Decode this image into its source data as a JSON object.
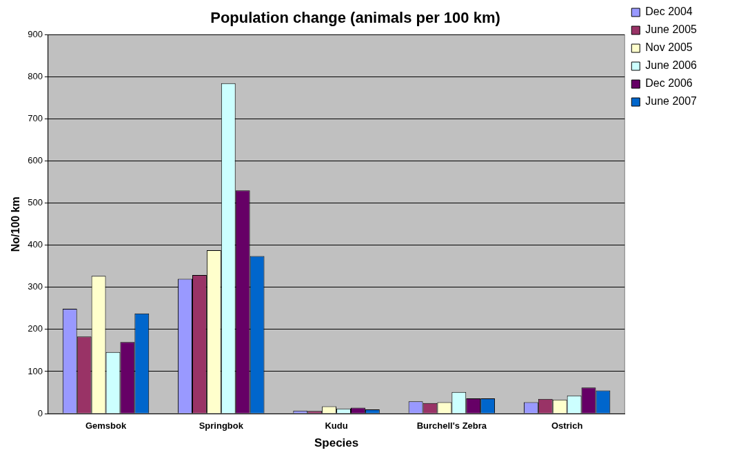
{
  "chart_data": {
    "type": "bar",
    "title": "Population change (animals per 100 km)",
    "xlabel": "Species",
    "ylabel": "No/100 km",
    "categories": [
      "Gemsbok",
      "Springbok",
      "Kudu",
      "Burchell's Zebra",
      "Ostrich"
    ],
    "series": [
      {
        "name": "Dec 2004",
        "color": "#9999ff",
        "values": [
          249,
          320,
          7,
          29,
          27
        ]
      },
      {
        "name": "June 2005",
        "color": "#993366",
        "values": [
          183,
          329,
          6,
          25,
          35
        ]
      },
      {
        "name": "Nov 2005",
        "color": "#ffffcc",
        "values": [
          327,
          388,
          17,
          27,
          33
        ]
      },
      {
        "name": "June 2006",
        "color": "#ccffff",
        "values": [
          146,
          785,
          12,
          51,
          43
        ]
      },
      {
        "name": "Dec 2006",
        "color": "#660066",
        "values": [
          170,
          530,
          14,
          36,
          62
        ]
      },
      {
        "name": "June 2007",
        "color": "#0066cc",
        "values": [
          238,
          374,
          10,
          36,
          55
        ]
      }
    ],
    "ylim": [
      0,
      900
    ],
    "yticks": [
      0,
      100,
      200,
      300,
      400,
      500,
      600,
      700,
      800,
      900
    ],
    "grid": "y",
    "legend": "top right"
  }
}
